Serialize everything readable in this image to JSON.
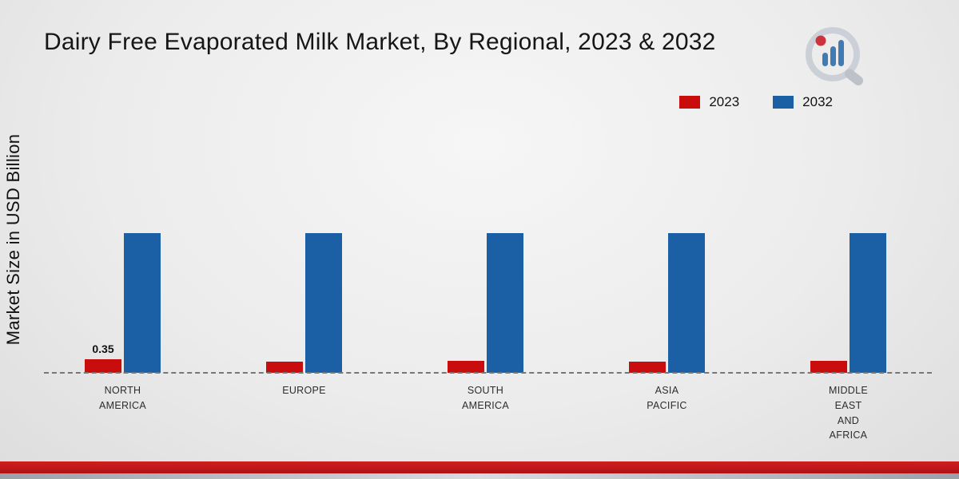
{
  "header": {
    "title": "Dairy Free Evaporated Milk Market, By Regional, 2023 & 2032"
  },
  "y_axis_label": "Market Size in USD Billion",
  "legend": {
    "items": [
      {
        "label": "2023",
        "color": "#c90d0d"
      },
      {
        "label": "2032",
        "color": "#1b5fa5"
      }
    ]
  },
  "chart_data": {
    "type": "bar",
    "title": "Dairy Free Evaporated Milk Market, By Regional, 2023 & 2032",
    "xlabel": "",
    "ylabel": "Market Size in USD Billion",
    "categories": [
      "NORTH AMERICA",
      "EUROPE",
      "SOUTH AMERICA",
      "ASIA PACIFIC",
      "MIDDLE EAST AND AFRICA"
    ],
    "category_lines": [
      [
        "NORTH",
        "AMERICA"
      ],
      [
        "EUROPE"
      ],
      [
        "SOUTH",
        "AMERICA"
      ],
      [
        "ASIA",
        "PACIFIC"
      ],
      [
        "MIDDLE",
        "EAST",
        "AND",
        "AFRICA"
      ]
    ],
    "series": [
      {
        "name": "2023",
        "color": "#c90d0d",
        "values": [
          0.35,
          0.28,
          0.3,
          0.29,
          0.3
        ]
      },
      {
        "name": "2032",
        "color": "#1b5fa5",
        "values": [
          3.5,
          3.5,
          3.5,
          3.5,
          3.5
        ]
      }
    ],
    "data_labels": [
      {
        "series": "2023",
        "category": "NORTH AMERICA",
        "value": "0.35"
      }
    ],
    "ylim": [
      0,
      4
    ],
    "grid": false,
    "legend_position": "top-right",
    "baseline_style": "dashed"
  },
  "footer": {
    "accent_color": "#b01217"
  }
}
